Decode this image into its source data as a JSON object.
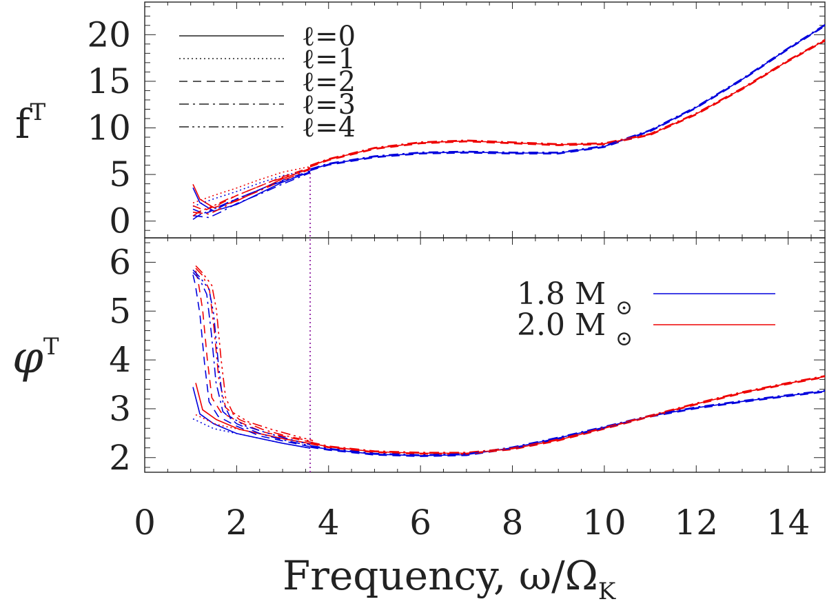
{
  "chart_data": {
    "type": "line",
    "xlabel_main": "Frequency, ω/Ω",
    "xlabel_sub": "K",
    "xlim": [
      0,
      14.8
    ],
    "xticks": [
      "0",
      "2",
      "4",
      "6",
      "8",
      "10",
      "12",
      "14"
    ],
    "xtick_values": [
      0,
      2,
      4,
      6,
      8,
      10,
      12,
      14
    ],
    "vline_x": 3.6,
    "colors": {
      "m18": "#0000dd",
      "m20": "#ee0000"
    },
    "top": {
      "ylabel_main": "f",
      "ylabel_sub": "T",
      "ylim": [
        -1.8,
        23.5
      ],
      "yticks": [
        "0",
        "5",
        "10",
        "15",
        "20"
      ],
      "ytick_values": [
        0,
        5,
        10,
        15,
        20
      ]
    },
    "bottom": {
      "ylabel": "φ",
      "ylabel_sub": "T",
      "ylim": [
        1.7,
        6.5
      ],
      "yticks": [
        "2",
        "3",
        "4",
        "5",
        "6"
      ],
      "ytick_values": [
        2,
        3,
        4,
        5,
        6
      ]
    },
    "legend_l": [
      {
        "label": "ℓ=0",
        "dash": "solid"
      },
      {
        "label": "ℓ=1",
        "dash": "dotted"
      },
      {
        "label": "ℓ=2",
        "dash": "dashed"
      },
      {
        "label": "ℓ=3",
        "dash": "dashdot"
      },
      {
        "label": "ℓ=4",
        "dash": "dashdotdotdot"
      }
    ],
    "legend_mass": [
      {
        "label": "1.8 M",
        "sym": "⊙",
        "color": "#0000dd"
      },
      {
        "label": "2.0 M",
        "sym": "⊙",
        "color": "#ee0000"
      }
    ],
    "series_top_main_18": {
      "x": [
        3.6,
        4,
        5,
        6,
        7,
        8,
        9,
        10,
        11,
        12,
        13,
        14,
        14.8
      ],
      "y": [
        5.5,
        6.1,
        6.9,
        7.3,
        7.4,
        7.3,
        7.3,
        8.0,
        9.7,
        12.2,
        15.2,
        18.5,
        21.0
      ]
    },
    "series_top_main_20": {
      "x": [
        3.6,
        4,
        5,
        6,
        7,
        8,
        9,
        10,
        11,
        12,
        13,
        14,
        14.8
      ],
      "y": [
        5.9,
        6.6,
        7.8,
        8.4,
        8.6,
        8.4,
        8.2,
        8.3,
        9.3,
        11.5,
        14.2,
        17.2,
        19.4
      ]
    },
    "series_bot_main_18": {
      "x": [
        3.6,
        4,
        5,
        6,
        7,
        8,
        9,
        10,
        11,
        12,
        13,
        14,
        14.8
      ],
      "y": [
        2.23,
        2.17,
        2.07,
        2.04,
        2.06,
        2.2,
        2.4,
        2.62,
        2.85,
        3.02,
        3.15,
        3.27,
        3.36
      ]
    },
    "series_bot_main_20": {
      "x": [
        3.6,
        4,
        5,
        6,
        7,
        8,
        9,
        10,
        11,
        12,
        13,
        14,
        14.8
      ],
      "y": [
        2.3,
        2.22,
        2.12,
        2.09,
        2.09,
        2.18,
        2.36,
        2.6,
        2.85,
        3.1,
        3.33,
        3.52,
        3.66
      ]
    },
    "low_top": [
      {
        "dash": "solid",
        "x": [
          1.05,
          1.2,
          1.5,
          2,
          2.5,
          3,
          3.6
        ],
        "y": [
          3.8,
          2.2,
          1.3,
          2.0,
          3.2,
          4.4,
          5.5
        ]
      },
      {
        "dash": "dotted",
        "x": [
          1.05,
          1.5,
          2,
          2.5,
          3,
          3.6
        ],
        "y": [
          1.8,
          2.6,
          3.4,
          4.3,
          5.1,
          5.7
        ]
      },
      {
        "dash": "dashed",
        "x": [
          1.05,
          1.3,
          1.6,
          2,
          2.5,
          3,
          3.6
        ],
        "y": [
          1.5,
          1.0,
          1.6,
          2.6,
          3.6,
          4.6,
          5.6
        ]
      },
      {
        "dash": "dashdot",
        "x": [
          1.05,
          1.4,
          1.7,
          2,
          2.5,
          3,
          3.6
        ],
        "y": [
          0.8,
          0.6,
          1.3,
          2.1,
          3.1,
          4.2,
          5.4
        ]
      },
      {
        "dash": "dashdotdotdot",
        "x": [
          1.05,
          1.2,
          1.5,
          1.8,
          2.2,
          2.7,
          3.2,
          3.6
        ],
        "y": [
          0.4,
          0.9,
          1.5,
          2.2,
          3.0,
          4.0,
          4.8,
          5.5
        ]
      }
    ],
    "low_bot": [
      {
        "dash": "solid",
        "x": [
          1.05,
          1.2,
          1.5,
          2,
          2.5,
          3,
          3.6
        ],
        "y": [
          3.5,
          2.95,
          2.75,
          2.55,
          2.45,
          2.35,
          2.25
        ]
      },
      {
        "dash": "dotted",
        "x": [
          1.05,
          1.5,
          2,
          2.5,
          3,
          3.6
        ],
        "y": [
          2.85,
          2.65,
          2.55,
          2.45,
          2.35,
          2.25
        ]
      },
      {
        "dash": "dashed",
        "x": [
          1.05,
          1.1,
          1.2,
          1.3,
          1.4,
          1.6,
          2,
          2.5,
          3,
          3.6
        ],
        "y": [
          5.8,
          5.6,
          5.0,
          4.0,
          3.2,
          2.9,
          2.7,
          2.5,
          2.4,
          2.28
        ]
      },
      {
        "dash": "dashdot",
        "x": [
          1.05,
          1.2,
          1.35,
          1.45,
          1.55,
          1.7,
          2,
          2.5,
          3,
          3.6
        ],
        "y": [
          5.85,
          5.7,
          5.4,
          4.6,
          3.6,
          3.0,
          2.75,
          2.55,
          2.42,
          2.3
        ]
      },
      {
        "dash": "dashdotdotdot",
        "x": [
          1.05,
          1.2,
          1.4,
          1.5,
          1.6,
          1.7,
          1.85,
          2.2,
          2.7,
          3.2,
          3.6
        ],
        "y": [
          5.9,
          5.75,
          5.5,
          5.0,
          4.0,
          3.2,
          2.9,
          2.7,
          2.55,
          2.42,
          2.32
        ]
      }
    ]
  }
}
